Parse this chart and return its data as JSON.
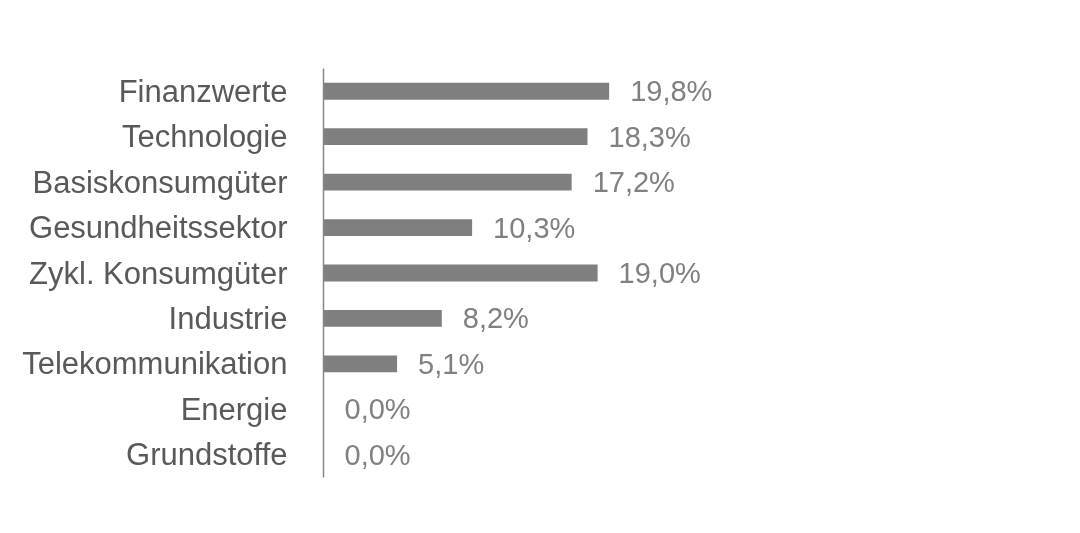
{
  "chart_data": {
    "type": "bar",
    "orientation": "horizontal",
    "categories": [
      "Finanzwerte",
      "Technologie",
      "Basiskonsumgüter",
      "Gesundheitssektor",
      "Zykl. Konsumgüter",
      "Industrie",
      "Telekommunikation",
      "Energie",
      "Grundstoffe"
    ],
    "values": [
      19.8,
      18.3,
      17.2,
      10.3,
      19.0,
      8.2,
      5.1,
      0.0,
      0.0
    ],
    "value_labels": [
      "19,8%",
      "18,3%",
      "17,2%",
      "10,3%",
      "19,0%",
      "8,2%",
      "5,1%",
      "0,0%",
      "0,0%"
    ],
    "color": "#7f7f7f",
    "tick_labels": "y"
  }
}
